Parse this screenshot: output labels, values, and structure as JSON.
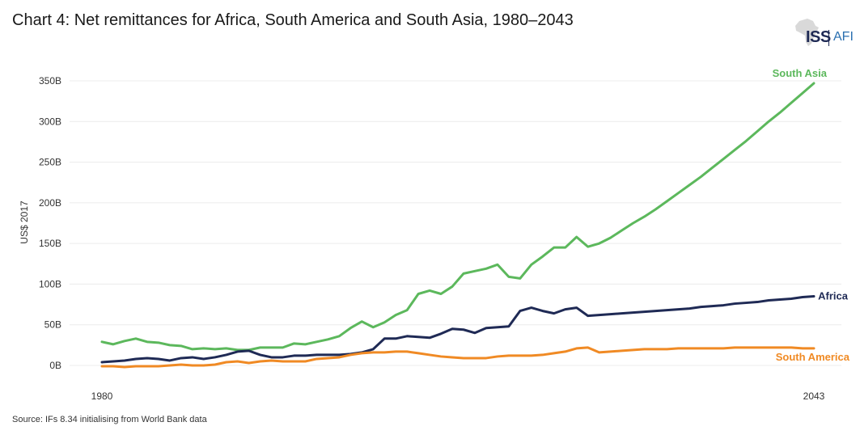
{
  "title": "Chart 4: Net remittances for Africa, South America and South Asia, 1980–2043",
  "source": "Source: IFs 8.34 initialising from World Bank data",
  "logo": {
    "iss": "ISS",
    "afi": "AFI"
  },
  "chart_data": {
    "type": "line",
    "title": "Chart 4: Net remittances for Africa, South America and South Asia, 1980–2043",
    "xlabel": "",
    "ylabel": "US$ 2017",
    "xlim": [
      1980,
      2043
    ],
    "ylim": [
      0,
      350
    ],
    "x_ticks": [
      {
        "value": 1980,
        "label": "1980"
      },
      {
        "value": 2043,
        "label": "2043"
      }
    ],
    "y_ticks": [
      {
        "value": 0,
        "label": "0B"
      },
      {
        "value": 50,
        "label": "50B"
      },
      {
        "value": 100,
        "label": "100B"
      },
      {
        "value": 150,
        "label": "150B"
      },
      {
        "value": 200,
        "label": "200B"
      },
      {
        "value": 250,
        "label": "250B"
      },
      {
        "value": 300,
        "label": "300B"
      },
      {
        "value": 350,
        "label": "350B"
      }
    ],
    "x": [
      1980,
      1981,
      1982,
      1983,
      1984,
      1985,
      1986,
      1987,
      1988,
      1989,
      1990,
      1991,
      1992,
      1993,
      1994,
      1995,
      1996,
      1997,
      1998,
      1999,
      2000,
      2001,
      2002,
      2003,
      2004,
      2005,
      2006,
      2007,
      2008,
      2009,
      2010,
      2011,
      2012,
      2013,
      2014,
      2015,
      2016,
      2017,
      2018,
      2019,
      2020,
      2021,
      2022,
      2023,
      2024,
      2025,
      2026,
      2027,
      2028,
      2029,
      2030,
      2031,
      2032,
      2033,
      2034,
      2035,
      2036,
      2037,
      2038,
      2039,
      2040,
      2041,
      2042,
      2043
    ],
    "series": [
      {
        "name": "South Asia",
        "color": "#5cb85c",
        "values": [
          29,
          26,
          30,
          33,
          29,
          28,
          25,
          24,
          20,
          21,
          20,
          21,
          19,
          19,
          22,
          22,
          22,
          27,
          26,
          29,
          32,
          36,
          46,
          54,
          47,
          53,
          62,
          68,
          88,
          92,
          88,
          97,
          113,
          116,
          119,
          124,
          109,
          107,
          124,
          134,
          145,
          145,
          158,
          146,
          150,
          157,
          166,
          175,
          183,
          192,
          202,
          212,
          222,
          232,
          243,
          254,
          265,
          276,
          288,
          300,
          311,
          323,
          335,
          347
        ]
      },
      {
        "name": "Africa",
        "color": "#1f2a55",
        "values": [
          4,
          5,
          6,
          8,
          9,
          8,
          6,
          9,
          10,
          8,
          10,
          13,
          17,
          18,
          13,
          10,
          10,
          12,
          12,
          13,
          13,
          13,
          14,
          16,
          20,
          33,
          33,
          36,
          35,
          34,
          39,
          45,
          44,
          40,
          46,
          47,
          48,
          67,
          71,
          67,
          64,
          69,
          71,
          61,
          62,
          63,
          64,
          65,
          66,
          67,
          68,
          69,
          70,
          72,
          73,
          74,
          76,
          77,
          78,
          80,
          81,
          82,
          84,
          85
        ]
      },
      {
        "name": "South America",
        "color": "#f08a24",
        "values": [
          -1,
          -1,
          -2,
          -1,
          -1,
          -1,
          0,
          1,
          0,
          0,
          1,
          4,
          5,
          3,
          5,
          6,
          5,
          5,
          5,
          8,
          9,
          10,
          13,
          15,
          16,
          16,
          17,
          17,
          15,
          13,
          11,
          10,
          9,
          9,
          9,
          11,
          12,
          12,
          12,
          13,
          15,
          17,
          21,
          22,
          16,
          17,
          18,
          19,
          20,
          20,
          20,
          21,
          21,
          21,
          21,
          21,
          22,
          22,
          22,
          22,
          22,
          22,
          21,
          21
        ]
      }
    ],
    "series_labels": [
      "South Asia",
      "Africa",
      "South America"
    ]
  }
}
